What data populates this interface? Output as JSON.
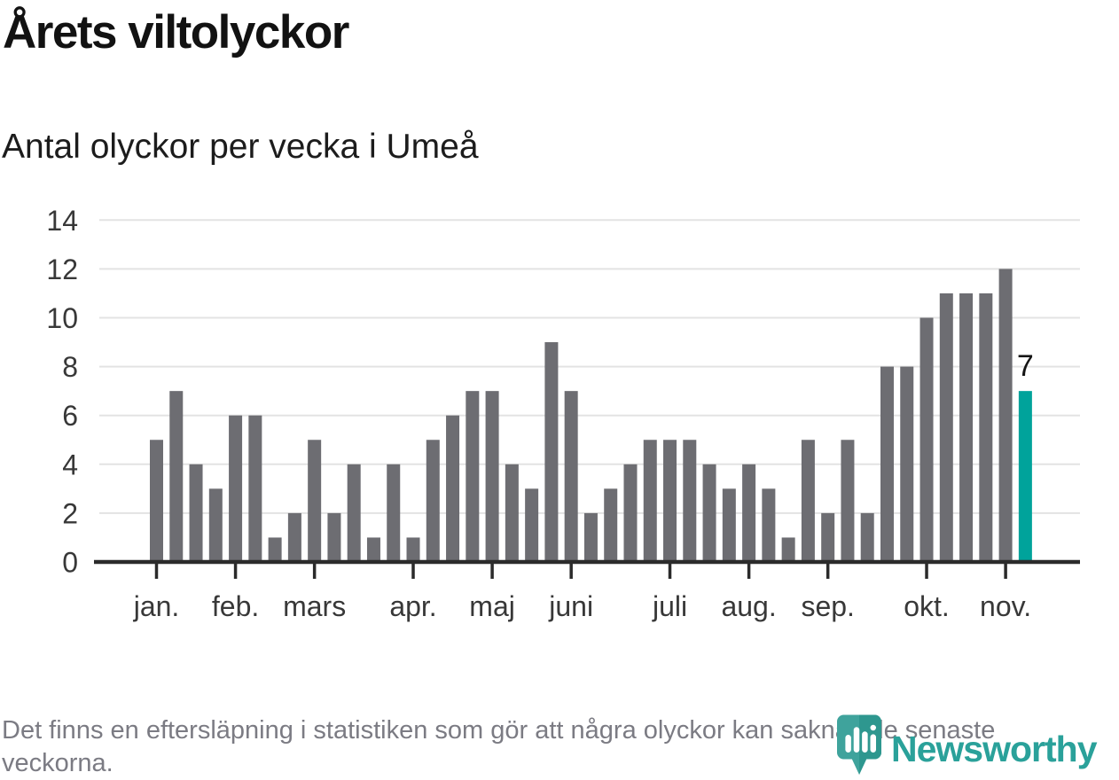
{
  "header": {
    "title": "Årets viltolyckor",
    "subtitle": "Antal olyckor per vecka i Umeå"
  },
  "chart_data": {
    "type": "bar",
    "title": "Årets viltolyckor",
    "subtitle": "Antal olyckor per vecka i Umeå",
    "x_unit": "vecka (week of year)",
    "values": [
      5,
      7,
      4,
      3,
      6,
      6,
      1,
      2,
      5,
      2,
      4,
      1,
      4,
      1,
      5,
      6,
      7,
      7,
      4,
      3,
      9,
      7,
      2,
      3,
      4,
      5,
      5,
      5,
      4,
      3,
      4,
      3,
      1,
      5,
      2,
      5,
      2,
      8,
      8,
      10,
      11,
      11,
      11,
      12,
      7
    ],
    "highlight_last": true,
    "last_value_label": "7",
    "ylim": [
      0,
      14
    ],
    "yticks": [
      0,
      2,
      4,
      6,
      8,
      10,
      12,
      14
    ],
    "xticks": [
      {
        "label": "jan.",
        "bar": 1
      },
      {
        "label": "feb.",
        "bar": 5
      },
      {
        "label": "mars",
        "bar": 9
      },
      {
        "label": "apr.",
        "bar": 14
      },
      {
        "label": "maj",
        "bar": 18
      },
      {
        "label": "juni",
        "bar": 22
      },
      {
        "label": "juli",
        "bar": 27
      },
      {
        "label": "aug.",
        "bar": 31
      },
      {
        "label": "sep.",
        "bar": 35
      },
      {
        "label": "okt.",
        "bar": 40
      },
      {
        "label": "nov.",
        "bar": 44
      }
    ],
    "grid": true,
    "legend": "none",
    "bar_color": "#6d6d72",
    "highlight_color": "#00a39b",
    "grid_color": "#e3e3e3",
    "axis_color": "#2b2b2b",
    "tick_label_color": "#383838",
    "annotation_color": "#141414"
  },
  "footer": {
    "note": "Det finns en eftersläpning i statistiken som gör att några olyckor kan saknas de senaste veckorna."
  },
  "logo": {
    "wordmark": "Newsworthy",
    "icon": "newsworthy-bubble-chart-icon",
    "color": "#2aa19a"
  },
  "colors": {
    "accent_teal": "#00a39b",
    "bar_gray": "#6d6d72",
    "grid": "#e3e3e3",
    "axis": "#2b2b2b",
    "footnote_gray": "#7b7b83",
    "logo_teal": "#2aa19a"
  }
}
